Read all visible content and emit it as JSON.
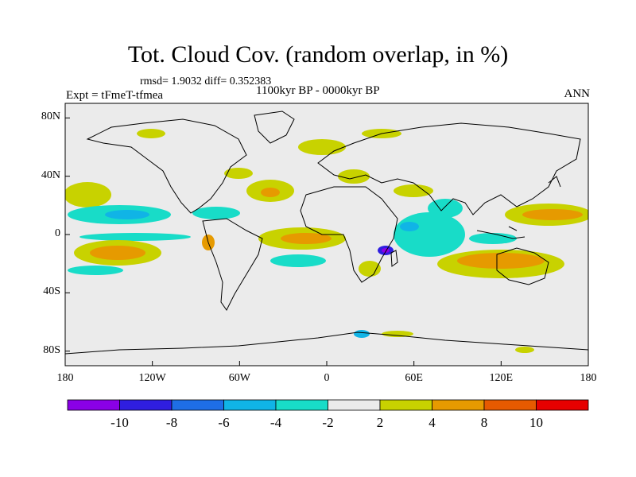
{
  "header": {
    "title": "Tot. Cloud Cov. (random overlap, in %)",
    "stats": "rmsd= 1.9032 diff= 0.352383",
    "experiment": "Expt = tFmeT-tfmea",
    "period": "1100kyr BP - 0000kyr BP",
    "season": "ANN"
  },
  "map": {
    "x_tick_labels": [
      "180",
      "120W",
      "60W",
      "0",
      "60E",
      "120E",
      "180"
    ],
    "y_tick_labels": [
      "80N",
      "40N",
      "0",
      "40S",
      "80S"
    ],
    "x_tick_values": [
      -180,
      -120,
      -60,
      0,
      60,
      120,
      180
    ],
    "y_tick_values": [
      80,
      40,
      0,
      -40,
      -80
    ],
    "lon_range": [
      -180,
      180
    ],
    "lat_range": [
      -90,
      90
    ],
    "background_color": "#ebebeb"
  },
  "colorbar": {
    "labels": [
      "-10",
      "-8",
      "-6",
      "-4",
      "-2",
      "2",
      "4",
      "8",
      "10"
    ],
    "colors": [
      "#8a00e6",
      "#2f1ee0",
      "#1e6ee6",
      "#10b4e6",
      "#18dcc8",
      "#ebebeb",
      "#c8d200",
      "#e69a00",
      "#e65a00",
      "#e60000"
    ]
  },
  "chart_data": {
    "type": "heatmap",
    "variable": "Tot. Cloud Cov. (random overlap, in %)",
    "levels": [
      -10,
      -8,
      -6,
      -4,
      -2,
      2,
      4,
      8,
      10
    ],
    "xlim": [
      -180,
      180
    ],
    "ylim": [
      -90,
      90
    ],
    "anomaly_regions": [
      {
        "lon": -170,
        "lat": 20,
        "value": 3
      },
      {
        "lon": -165,
        "lat": -22,
        "value": 6
      },
      {
        "lon": -160,
        "lat": -35,
        "value": -3
      },
      {
        "lon": -150,
        "lat": 8,
        "value": -3
      },
      {
        "lon": -140,
        "lat": -2,
        "value": -4
      },
      {
        "lon": -30,
        "lat": 33,
        "value": 3
      },
      {
        "lon": -25,
        "lat": 25,
        "value": 6
      },
      {
        "lon": -10,
        "lat": -2,
        "value": 6
      },
      {
        "lon": -25,
        "lat": -8,
        "value": 3
      },
      {
        "lon": -20,
        "lat": -22,
        "value": -3
      },
      {
        "lon": 45,
        "lat": 0,
        "value": -3
      },
      {
        "lon": 38,
        "lat": -10,
        "value": -10
      },
      {
        "lon": 65,
        "lat": 15,
        "value": -3
      },
      {
        "lon": 90,
        "lat": -12,
        "value": -3
      },
      {
        "lon": 115,
        "lat": -24,
        "value": 6
      },
      {
        "lon": 140,
        "lat": 5,
        "value": 3
      },
      {
        "lon": 150,
        "lat": 12,
        "value": 6
      },
      {
        "lon": 25,
        "lat": -72,
        "value": -4
      }
    ]
  }
}
